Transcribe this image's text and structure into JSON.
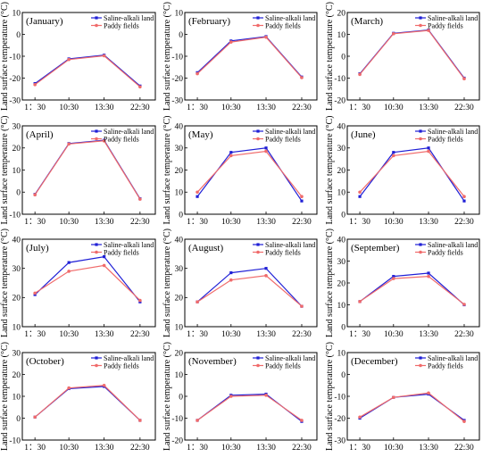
{
  "colors": {
    "saline": "#1f1fd6",
    "paddy": "#f06b6b",
    "axis": "#000000"
  },
  "chart_data": [
    {
      "type": "line",
      "panel": "(January)",
      "ylabel": "Land surface temperature (°C)",
      "categories": [
        "1：30",
        "10:30",
        "13:30",
        "22:30"
      ],
      "ylim": [
        -30,
        10
      ],
      "yticks": [
        "-30",
        "-20",
        "-10",
        "0",
        "10"
      ],
      "legend": [
        "Saline-alkali land",
        "Paddy fields"
      ],
      "series": [
        {
          "name": "Saline-alkali land",
          "values": [
            -22.5,
            -11.2,
            -9.5,
            -23.6
          ]
        },
        {
          "name": "Paddy fields",
          "values": [
            -23,
            -11.5,
            -9.8,
            -24
          ]
        }
      ]
    },
    {
      "type": "line",
      "panel": "(February)",
      "ylabel": "Land surface temperature (°C)",
      "categories": [
        "1：30",
        "10:30",
        "13:30",
        "22:30"
      ],
      "ylim": [
        -30,
        10
      ],
      "yticks": [
        "-30",
        "-20",
        "-10",
        "0",
        "10"
      ],
      "legend": [
        "Saline-alkali land",
        "Paddy fields"
      ],
      "series": [
        {
          "name": "Saline-alkali land",
          "values": [
            -17.5,
            -3,
            -1,
            -19.5
          ]
        },
        {
          "name": "Paddy fields",
          "values": [
            -18,
            -3.5,
            -1.3,
            -19.8
          ]
        }
      ]
    },
    {
      "type": "line",
      "panel": "(March)",
      "ylabel": "Land surface temperature (°C)",
      "categories": [
        "1：30",
        "10:30",
        "13:30",
        "22:30"
      ],
      "ylim": [
        -20,
        20
      ],
      "yticks": [
        "-20",
        "-10",
        "0",
        "10",
        "20"
      ],
      "legend": [
        "Saline-alkali land",
        "Paddy fields"
      ],
      "series": [
        {
          "name": "Saline-alkali land",
          "values": [
            -8,
            10.5,
            12,
            -10
          ]
        },
        {
          "name": "Paddy fields",
          "values": [
            -8.3,
            10.3,
            11.8,
            -10.3
          ]
        }
      ]
    },
    {
      "type": "line",
      "panel": "(April)",
      "ylabel": "Land surface temperature (°C)",
      "categories": [
        "1：30",
        "10:30",
        "13:30",
        "22:30"
      ],
      "ylim": [
        -10,
        30
      ],
      "yticks": [
        "-10",
        "0",
        "10",
        "20",
        "30"
      ],
      "legend": [
        "Saline-alkali land",
        "Paddy fields"
      ],
      "series": [
        {
          "name": "Saline-alkali land",
          "values": [
            -1,
            22,
            23.5,
            -3
          ]
        },
        {
          "name": "Paddy fields",
          "values": [
            -1.2,
            21.8,
            23.2,
            -3.2
          ]
        }
      ]
    },
    {
      "type": "line",
      "panel": "(May)",
      "ylabel": "Land surface temperature (°C)",
      "categories": [
        "1：30",
        "10:30",
        "13:30",
        "22:30"
      ],
      "ylim": [
        0,
        40
      ],
      "yticks": [
        "0",
        "10",
        "20",
        "30",
        "40"
      ],
      "legend": [
        "Saline-alkali land",
        "Paddy fields"
      ],
      "series": [
        {
          "name": "Saline-alkali land",
          "values": [
            8,
            28,
            30,
            6
          ]
        },
        {
          "name": "Paddy fields",
          "values": [
            10,
            26.5,
            28.5,
            8
          ]
        }
      ]
    },
    {
      "type": "line",
      "panel": "(June)",
      "ylabel": "Land surface temperature (°C)",
      "categories": [
        "1：30",
        "10:30",
        "13:30",
        "22:30"
      ],
      "ylim": [
        0,
        40
      ],
      "yticks": [
        "0",
        "10",
        "20",
        "30",
        "40"
      ],
      "legend": [
        "Saline-alkali land",
        "Paddy fields"
      ],
      "series": [
        {
          "name": "Saline-alkali land",
          "values": [
            8,
            28,
            30,
            6
          ]
        },
        {
          "name": "Paddy fields",
          "values": [
            10,
            26.5,
            28.5,
            8
          ]
        }
      ]
    },
    {
      "type": "line",
      "panel": "(July)",
      "ylabel": "Land surface temperature (°C)",
      "categories": [
        "1：30",
        "10:30",
        "13:30",
        "22:30"
      ],
      "ylim": [
        10,
        40
      ],
      "yticks": [
        "10",
        "20",
        "30",
        "40"
      ],
      "legend": [
        "Saline-alkali land",
        "Paddy fields"
      ],
      "series": [
        {
          "name": "Saline-alkali land",
          "values": [
            21,
            32,
            34,
            18.5
          ]
        },
        {
          "name": "Paddy fields",
          "values": [
            21.5,
            29,
            31,
            19
          ]
        }
      ]
    },
    {
      "type": "line",
      "panel": "(August)",
      "ylabel": "Land surface temperature (°C)",
      "categories": [
        "1：30",
        "10:30",
        "13:30",
        "22:30"
      ],
      "ylim": [
        10,
        40
      ],
      "yticks": [
        "10",
        "20",
        "30",
        "40"
      ],
      "legend": [
        "Saline-alkali land",
        "Paddy fields"
      ],
      "series": [
        {
          "name": "Saline-alkali land",
          "values": [
            18.5,
            28.5,
            30,
            17
          ]
        },
        {
          "name": "Paddy fields",
          "values": [
            18.5,
            26,
            27.5,
            17
          ]
        }
      ]
    },
    {
      "type": "line",
      "panel": "(September)",
      "ylabel": "Land surface temperature (°C)",
      "categories": [
        "1：30",
        "10:30",
        "13:30",
        "22:30"
      ],
      "ylim": [
        0,
        40
      ],
      "yticks": [
        "0",
        "10",
        "20",
        "30",
        "40"
      ],
      "legend": [
        "Saline-alkali land",
        "Paddy fields"
      ],
      "series": [
        {
          "name": "Saline-alkali land",
          "values": [
            11.5,
            23,
            24.5,
            10
          ]
        },
        {
          "name": "Paddy fields",
          "values": [
            11.5,
            22,
            23,
            10.2
          ]
        }
      ]
    },
    {
      "type": "line",
      "panel": "(October)",
      "ylabel": "Land surface temperature (°C)",
      "categories": [
        "1：30",
        "10:30",
        "13:30",
        "22:30"
      ],
      "ylim": [
        -10,
        30
      ],
      "yticks": [
        "-10",
        "0",
        "10",
        "20",
        "30"
      ],
      "legend": [
        "Saline-alkali land",
        "Paddy fields"
      ],
      "series": [
        {
          "name": "Saline-alkali land",
          "values": [
            0.5,
            13.5,
            14.5,
            -1
          ]
        },
        {
          "name": "Paddy fields",
          "values": [
            0.5,
            13.8,
            15,
            -1
          ]
        }
      ]
    },
    {
      "type": "line",
      "panel": "(November)",
      "ylabel": "Land surface temperature (°C)",
      "categories": [
        "1：30",
        "10:30",
        "13:30",
        "22:30"
      ],
      "ylim": [
        -20,
        20
      ],
      "yticks": [
        "-20",
        "-10",
        "0",
        "10",
        "20"
      ],
      "legend": [
        "Saline-alkali land",
        "Paddy fields"
      ],
      "series": [
        {
          "name": "Saline-alkali land",
          "values": [
            -11,
            0.5,
            1,
            -11.5
          ]
        },
        {
          "name": "Paddy fields",
          "values": [
            -11,
            0,
            0.5,
            -11
          ]
        }
      ]
    },
    {
      "type": "line",
      "panel": "(December)",
      "ylabel": "Land surface temperature (°C)",
      "categories": [
        "1：30",
        "10:30",
        "13:30",
        "22:30"
      ],
      "ylim": [
        -30,
        10
      ],
      "yticks": [
        "-30",
        "-20",
        "-10",
        "0",
        "10"
      ],
      "legend": [
        "Saline-alkali land",
        "Paddy fields"
      ],
      "series": [
        {
          "name": "Saline-alkali land",
          "values": [
            -20,
            -10.5,
            -9,
            -21
          ]
        },
        {
          "name": "Paddy fields",
          "values": [
            -19.5,
            -10.5,
            -8.5,
            -21.5
          ]
        }
      ]
    }
  ]
}
